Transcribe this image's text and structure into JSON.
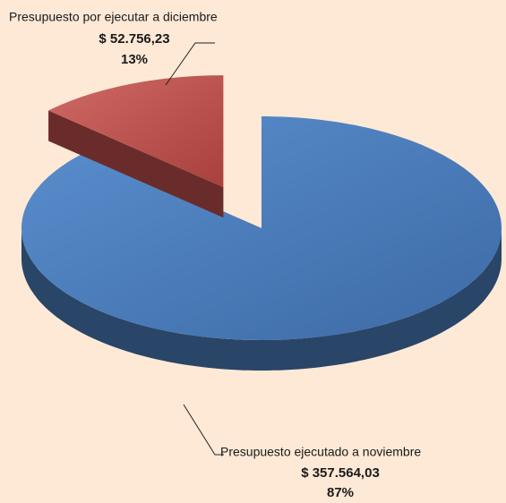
{
  "chart_data": {
    "type": "pie",
    "categories": [
      "Presupuesto por ejecutar a diciembre",
      "Presupuesto ejecutado a noviembre"
    ],
    "values": [
      13,
      87
    ],
    "value_labels": [
      "13%",
      "87%"
    ],
    "amounts": [
      52756.23,
      357564.03
    ],
    "amount_labels": [
      "$ 52.756,23",
      "$ 357.564,03"
    ],
    "colors": [
      "#c0504d",
      "#4a7ebb"
    ],
    "exploded": [
      true,
      false
    ]
  }
}
